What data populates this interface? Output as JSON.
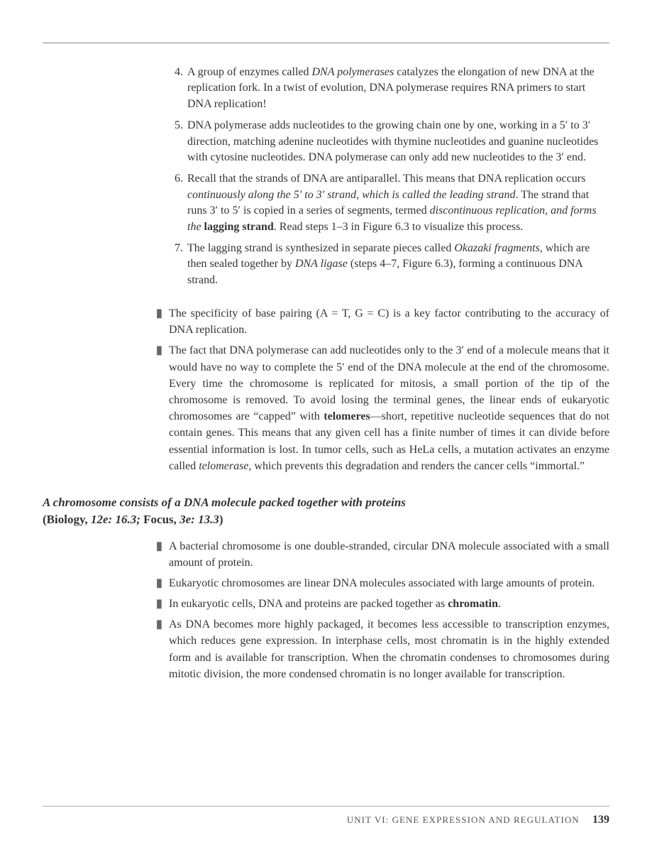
{
  "numbered": [
    {
      "n": "4.",
      "html": "A group of enzymes called <em>DNA polymerases</em> catalyzes the elongation of new DNA at the replication fork. In a twist of evolution, DNA polymerase requires RNA primers to start DNA replication!"
    },
    {
      "n": "5.",
      "html": "DNA polymerase adds nucleotides to the growing chain one by one, working in a 5′ to 3′ direction, matching adenine nucleotides with thymine nucleotides and guanine nucleotides with cytosine nucleotides. DNA polymerase can only add new nucleotides to the 3′ end."
    },
    {
      "n": "6.",
      "html": "Recall that the strands of DNA are antiparallel. This means that DNA replication occurs <em>continuously along the 5′ to 3′ strand, which is called the leading strand</em>. The strand that runs 3′ to 5′ is copied in a series of segments, termed <em>discontinuous replication, and forms the</em> <b>lagging strand</b>. Read steps 1–3 in Figure 6.3 to visualize this process."
    },
    {
      "n": "7.",
      "html": "The lagging strand is synthesized in separate pieces called <em>Okazaki fragments</em>, which are then sealed together by <em>DNA ligase</em> (steps 4–7, Figure 6.3), forming a continuous DNA strand."
    }
  ],
  "bullets1": [
    {
      "html": "The specificity of base pairing (A = T, G = C) is a key factor contributing to the accuracy of DNA replication."
    },
    {
      "html": "The fact that DNA polymerase can add nucleotides only to the 3′ end of a molecule means that it would have no way to complete the 5′ end of the DNA molecule at the end of the chromosome. Every time the chromosome is replicated for mitosis, a small portion of the tip of the chromosome is removed. To avoid losing the terminal genes, the linear ends of eukaryotic chromosomes are “capped” with <b>telomeres</b>—short, repetitive nucleotide sequences that do not contain genes. This means that any given cell has a finite number of times it can divide before essential information is lost. In tumor cells, such as HeLa cells, a mutation activates an enzyme called <em>telomerase</em>, which prevents this degradation and renders the cancer cells “immortal.”"
    }
  ],
  "heading": {
    "title": "A chromosome consists of a DNA molecule packed together with proteins",
    "ref_prefix": "(Biology, ",
    "ref_ital1": "12e: 16.3;",
    "ref_mid": " Focus, ",
    "ref_ital2": "3e: 13.3",
    "ref_suffix": ")"
  },
  "bullets2": [
    {
      "html": "A bacterial chromosome is one double-stranded, circular DNA molecule associated with a small amount of protein."
    },
    {
      "html": "Eukaryotic chromosomes are linear DNA molecules associated with large amounts of protein."
    },
    {
      "html": "In eukaryotic cells, DNA and proteins are packed together as <b>chromatin</b>."
    },
    {
      "html": "As DNA becomes more highly packaged, it becomes less accessible to transcription enzymes, which reduces gene expression. In interphase cells, most chromatin is in the highly extended form and is available for transcription. When the chromatin condenses to chromosomes during mitotic division, the more condensed chromatin is no longer available for transcription."
    }
  ],
  "footer": {
    "unit": "UNIT VI: GENE EXPRESSION AND REGULATION",
    "page": "139"
  },
  "bullet_char": "▮"
}
